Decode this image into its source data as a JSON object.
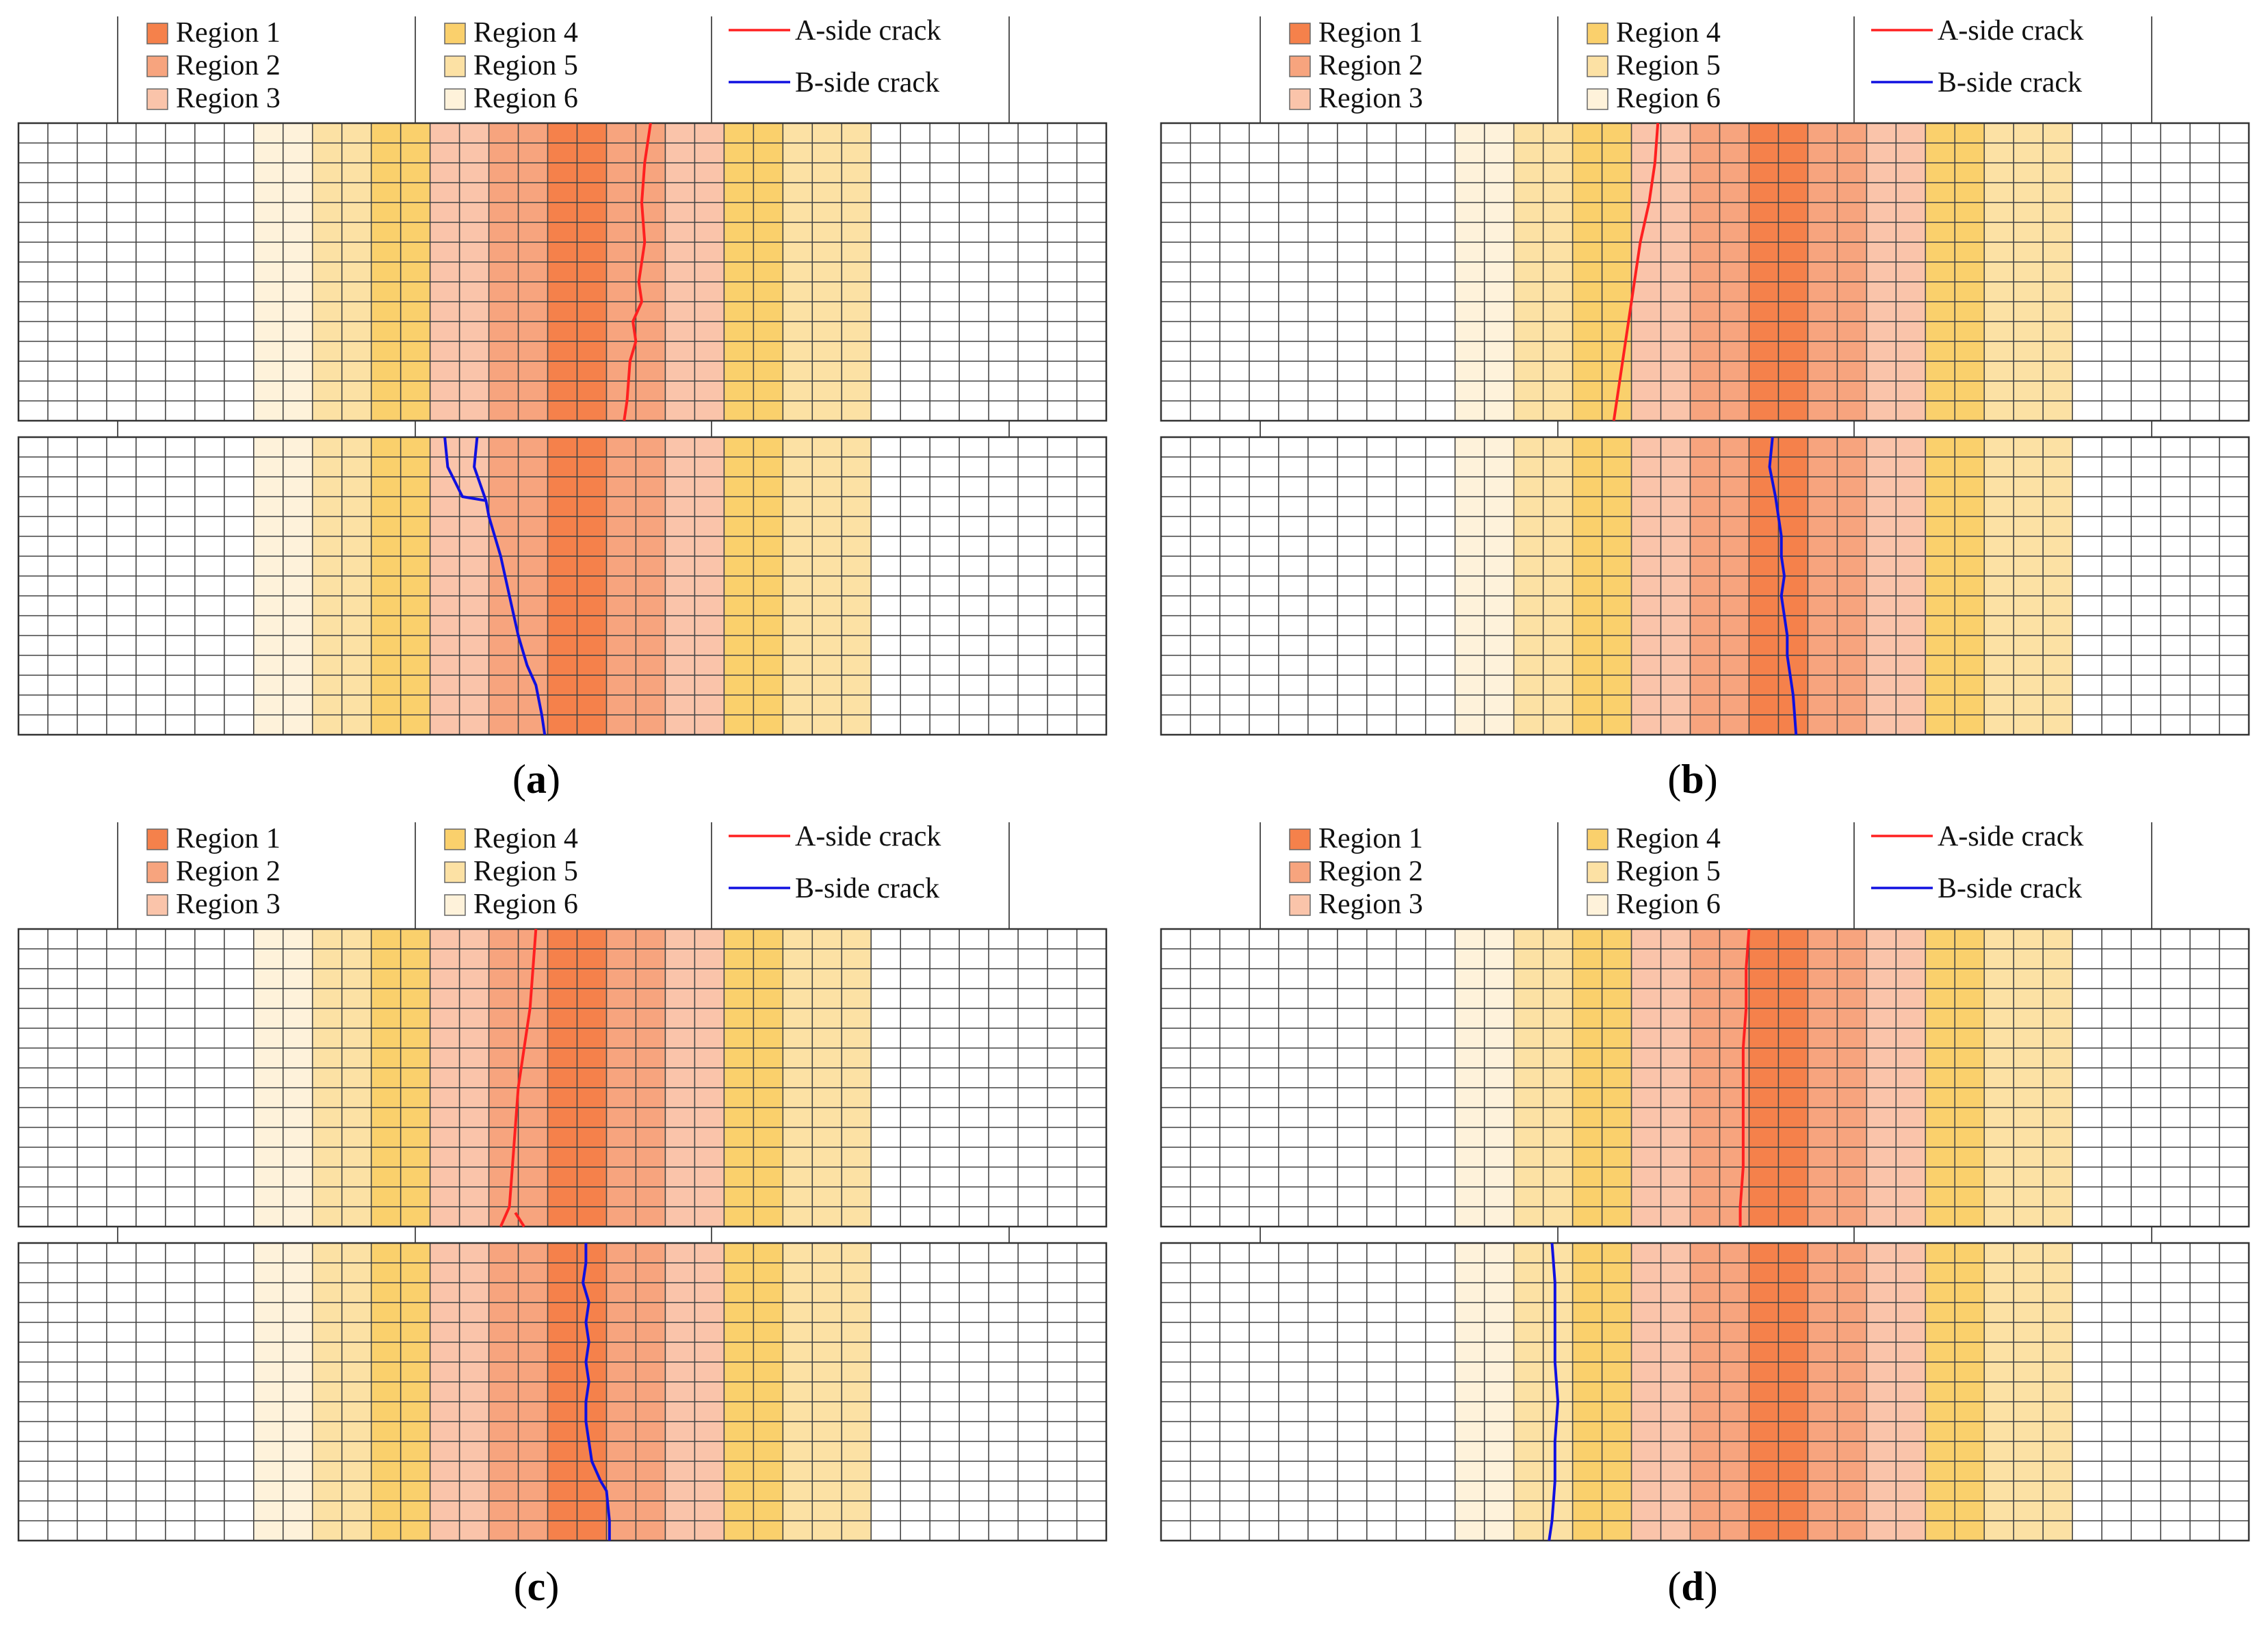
{
  "figure": {
    "regions": [
      {
        "label": "Region 1",
        "color": "#F5814B"
      },
      {
        "label": "Region 2",
        "color": "#F7A47E"
      },
      {
        "label": "Region 3",
        "color": "#FAC4AA"
      },
      {
        "label": "Region 4",
        "color": "#FAD06C"
      },
      {
        "label": "Region 5",
        "color": "#FCE1A4"
      },
      {
        "label": "Region 6",
        "color": "#FEF2DA"
      }
    ],
    "cracks": [
      {
        "label": "A-side crack",
        "color": "#FF2020"
      },
      {
        "label": "B-side crack",
        "color": "#1010E0"
      }
    ],
    "grid_columns": 37,
    "grid_rows_per_strip": 15,
    "region_sequence_by_column": [
      0,
      0,
      0,
      0,
      0,
      0,
      0,
      0,
      6,
      6,
      5,
      5,
      4,
      4,
      3,
      3,
      2,
      2,
      1,
      1,
      2,
      2,
      3,
      3,
      4,
      4,
      5,
      5,
      5,
      0,
      0,
      0,
      0,
      0,
      0,
      0,
      0
    ],
    "panels": [
      {
        "id": "a",
        "label": "a",
        "region_offset_columns": 0,
        "a_crack": [
          [
            21.5,
            0
          ],
          [
            21.3,
            2
          ],
          [
            21.2,
            4
          ],
          [
            21.3,
            6
          ],
          [
            21.1,
            8
          ],
          [
            21.2,
            9
          ],
          [
            20.9,
            10
          ],
          [
            21.0,
            11
          ],
          [
            20.8,
            12
          ],
          [
            20.7,
            14
          ],
          [
            20.6,
            15
          ]
        ],
        "b_crack_lines": [
          [
            [
              14.5,
              0
            ],
            [
              14.6,
              1.5
            ],
            [
              15.1,
              3
            ],
            [
              15.9,
              3.2
            ],
            [
              16.0,
              4
            ],
            [
              16.4,
              6
            ],
            [
              16.7,
              8
            ],
            [
              17.0,
              10
            ],
            [
              17.3,
              11.5
            ],
            [
              17.6,
              12.5
            ],
            [
              17.8,
              14
            ],
            [
              17.9,
              15
            ]
          ],
          [
            [
              15.6,
              0
            ],
            [
              15.5,
              1.5
            ],
            [
              15.9,
              3.2
            ]
          ]
        ]
      },
      {
        "id": "b",
        "label": "b",
        "region_offset_columns": 2,
        "a_crack": [
          [
            16.9,
            0
          ],
          [
            16.8,
            2
          ],
          [
            16.6,
            4
          ],
          [
            16.3,
            6
          ],
          [
            16.1,
            8
          ],
          [
            15.9,
            10
          ],
          [
            15.7,
            12
          ],
          [
            15.5,
            14
          ],
          [
            15.4,
            15
          ]
        ],
        "b_crack_lines": [
          [
            [
              20.8,
              0
            ],
            [
              20.7,
              1.5
            ],
            [
              20.9,
              3
            ],
            [
              21.0,
              4
            ],
            [
              21.1,
              5
            ],
            [
              21.1,
              6
            ],
            [
              21.2,
              7
            ],
            [
              21.1,
              8
            ],
            [
              21.2,
              9
            ],
            [
              21.3,
              10
            ],
            [
              21.3,
              11
            ],
            [
              21.4,
              12
            ],
            [
              21.5,
              13
            ],
            [
              21.6,
              15
            ]
          ]
        ]
      },
      {
        "id": "c",
        "label": "c",
        "region_offset_columns": 0,
        "a_crack": [
          [
            17.6,
            0
          ],
          [
            17.5,
            2
          ],
          [
            17.4,
            4
          ],
          [
            17.2,
            6
          ],
          [
            17.0,
            8
          ],
          [
            16.9,
            10
          ],
          [
            16.8,
            12
          ],
          [
            16.7,
            14
          ],
          [
            16.4,
            15
          ]
        ],
        "b_crack_lines": [
          [
            [
              19.3,
              0
            ],
            [
              19.3,
              1
            ],
            [
              19.2,
              2
            ],
            [
              19.4,
              3
            ],
            [
              19.3,
              4
            ],
            [
              19.4,
              5
            ],
            [
              19.3,
              6
            ],
            [
              19.4,
              7
            ],
            [
              19.3,
              8
            ],
            [
              19.3,
              9
            ],
            [
              19.4,
              10
            ],
            [
              19.5,
              11
            ],
            [
              19.8,
              12
            ],
            [
              20.0,
              12.5
            ],
            [
              20.1,
              14
            ],
            [
              20.1,
              15
            ]
          ]
        ],
        "a_crack_branch": [
          [
            16.9,
            14.3
          ],
          [
            17.2,
            15
          ]
        ]
      },
      {
        "id": "d",
        "label": "d",
        "region_offset_columns": 2,
        "a_crack": [
          [
            20.0,
            0
          ],
          [
            19.9,
            2
          ],
          [
            19.9,
            4
          ],
          [
            19.8,
            6
          ],
          [
            19.8,
            8
          ],
          [
            19.8,
            10
          ],
          [
            19.8,
            12
          ],
          [
            19.7,
            14
          ],
          [
            19.7,
            15
          ]
        ],
        "b_crack_lines": [
          [
            [
              13.3,
              0
            ],
            [
              13.4,
              2
            ],
            [
              13.4,
              4
            ],
            [
              13.4,
              6
            ],
            [
              13.5,
              8
            ],
            [
              13.4,
              10
            ],
            [
              13.4,
              12
            ],
            [
              13.3,
              14
            ],
            [
              13.2,
              15
            ]
          ]
        ]
      }
    ]
  }
}
